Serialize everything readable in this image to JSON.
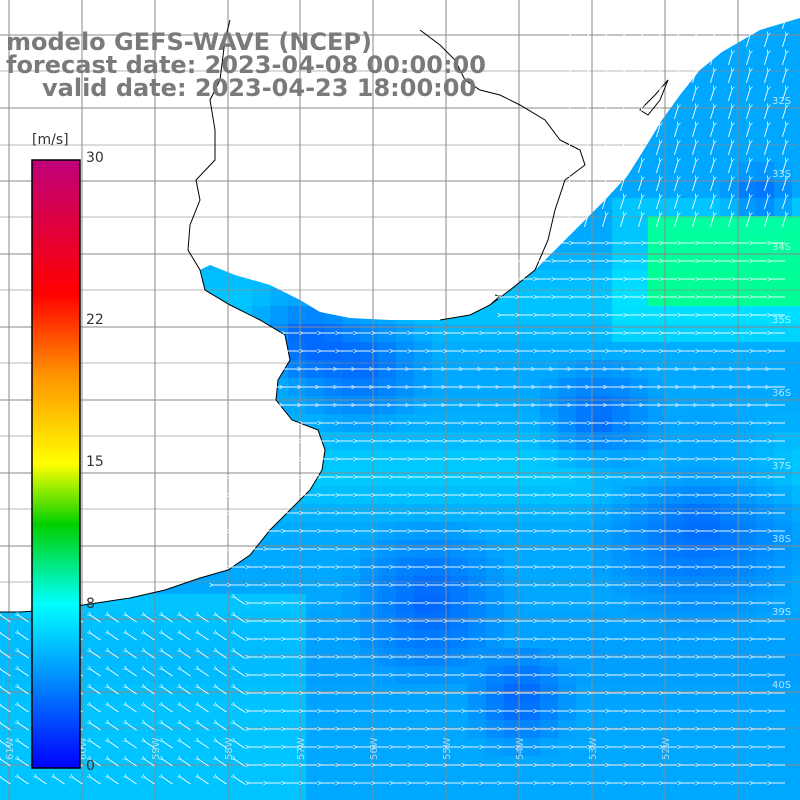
{
  "title": {
    "model": "modelo GEFS-WAVE (NCEP)",
    "forecast": "forecast date: 2023-04-08 00:00:00",
    "valid": "valid date: 2023-04-23 18:00:00"
  },
  "colorbar": {
    "unit": "[m/s]",
    "ticks": [
      {
        "label": "30",
        "value": 30
      },
      {
        "label": "22",
        "value": 22
      },
      {
        "label": "15",
        "value": 15
      },
      {
        "label": "8",
        "value": 8
      },
      {
        "label": "0",
        "value": 0
      }
    ],
    "range": [
      0,
      30
    ],
    "colors": [
      "#0000ff",
      "#0090ff",
      "#00ffff",
      "#00d000",
      "#ffff00",
      "#ff9000",
      "#ff0000",
      "#c0007a"
    ]
  },
  "lat_labels": [
    "32S",
    "33S",
    "34S",
    "35S",
    "36S",
    "37S",
    "38S",
    "39S",
    "40S"
  ],
  "lon_labels": [
    "61W",
    "60W",
    "59W",
    "58W",
    "57W",
    "56W",
    "55W",
    "54W",
    "53W",
    "52W"
  ],
  "colors": {
    "land": "#ffffff",
    "grid": "#8a8a8a",
    "coast": "#000000",
    "arrows": "#ffffff",
    "title": "#7a7a7a"
  }
}
